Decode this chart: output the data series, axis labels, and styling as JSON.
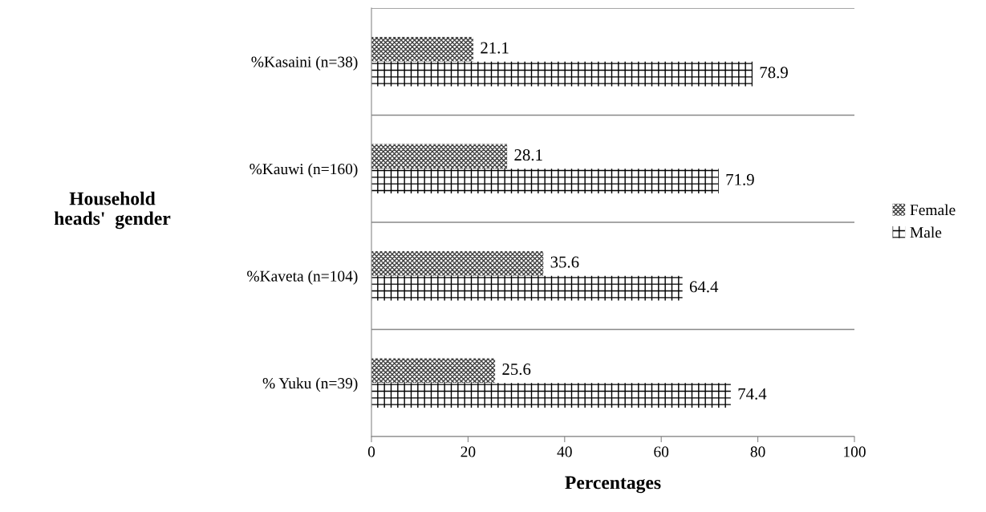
{
  "chart_data": {
    "type": "bar",
    "orientation": "horizontal",
    "categories": [
      "%Kasaini (n=38)",
      "%Kauwi (n=160)",
      "%Kaveta (n=104)",
      "% Yuku (n=39)"
    ],
    "series": [
      {
        "name": "Female",
        "color": "#404040",
        "values": [
          21.1,
          28.1,
          35.6,
          25.6
        ]
      },
      {
        "name": "Male",
        "color": "#000000",
        "values": [
          78.9,
          71.9,
          64.4,
          74.4
        ]
      }
    ],
    "xlabel": "Percentages",
    "ylabel": "Household\nheads'  gender",
    "xlim": [
      0,
      100
    ],
    "xticks": [
      0,
      20,
      40,
      60,
      80,
      100
    ],
    "data_labels": true,
    "grid": "y",
    "legend": "right"
  }
}
